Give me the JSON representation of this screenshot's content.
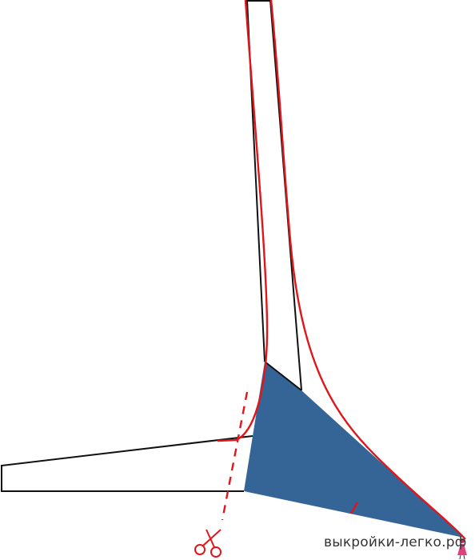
{
  "watermark": {
    "text": "выкройки-легко.рф",
    "logo_icon": "dress-figure-icon"
  },
  "colors": {
    "outline": "#111111",
    "correction_line": "#e0161b",
    "filled_wedge": "#356597",
    "cut_line": "#e0161b"
  },
  "icons": {
    "scissors": "scissors-icon"
  }
}
